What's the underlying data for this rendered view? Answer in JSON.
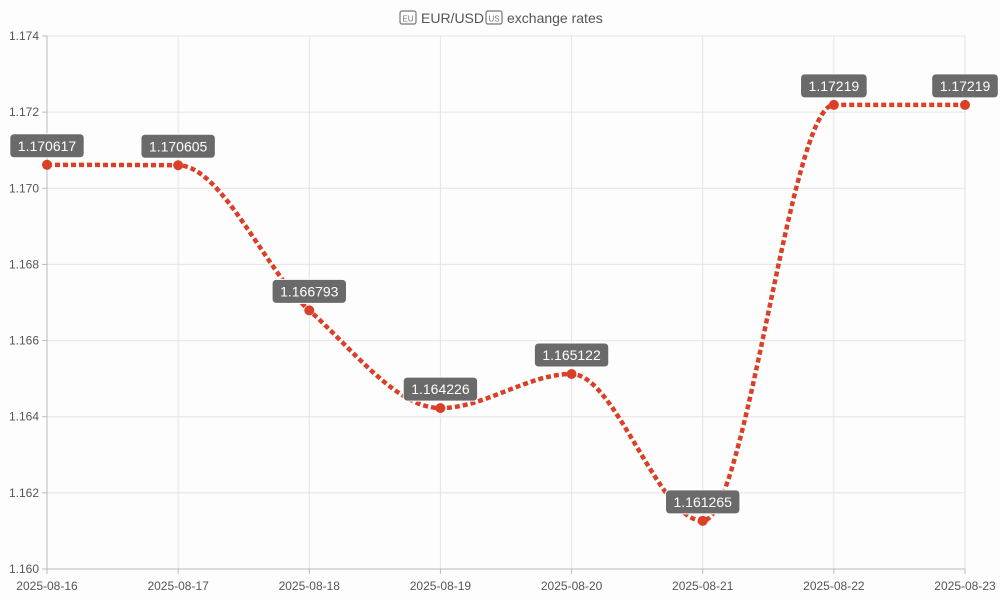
{
  "colors": {
    "series": "#d94027",
    "label_bg": "#6a6a6a",
    "icon": "#777777"
  },
  "title": {
    "base_icon": "eu-flag-icon",
    "base_label": "EU",
    "quote_icon": "us-flag-icon",
    "quote_label": "US",
    "text": "EUR/USD",
    "suffix": "exchange rates"
  },
  "chart_data": {
    "type": "line",
    "title": "EUR/USD exchange rates",
    "x": [
      "2025-08-16",
      "2025-08-17",
      "2025-08-18",
      "2025-08-19",
      "2025-08-20",
      "2025-08-21",
      "2025-08-22",
      "2025-08-23"
    ],
    "series": [
      {
        "values": [
          1.170617,
          1.170605,
          1.166793,
          1.164226,
          1.165122,
          1.161265,
          1.17219,
          1.17219
        ],
        "labels": [
          "1.170617",
          "1.170605",
          "1.166793",
          "1.164226",
          "1.165122",
          "1.161265",
          "1.17219",
          "1.17219"
        ]
      }
    ],
    "ylim": [
      1.16,
      1.174
    ],
    "yticks": [
      "1.160",
      "1.162",
      "1.164",
      "1.166",
      "1.168",
      "1.170",
      "1.172",
      "1.174"
    ],
    "grid": true,
    "legend": "none",
    "line_style": "dashed-smooth"
  }
}
